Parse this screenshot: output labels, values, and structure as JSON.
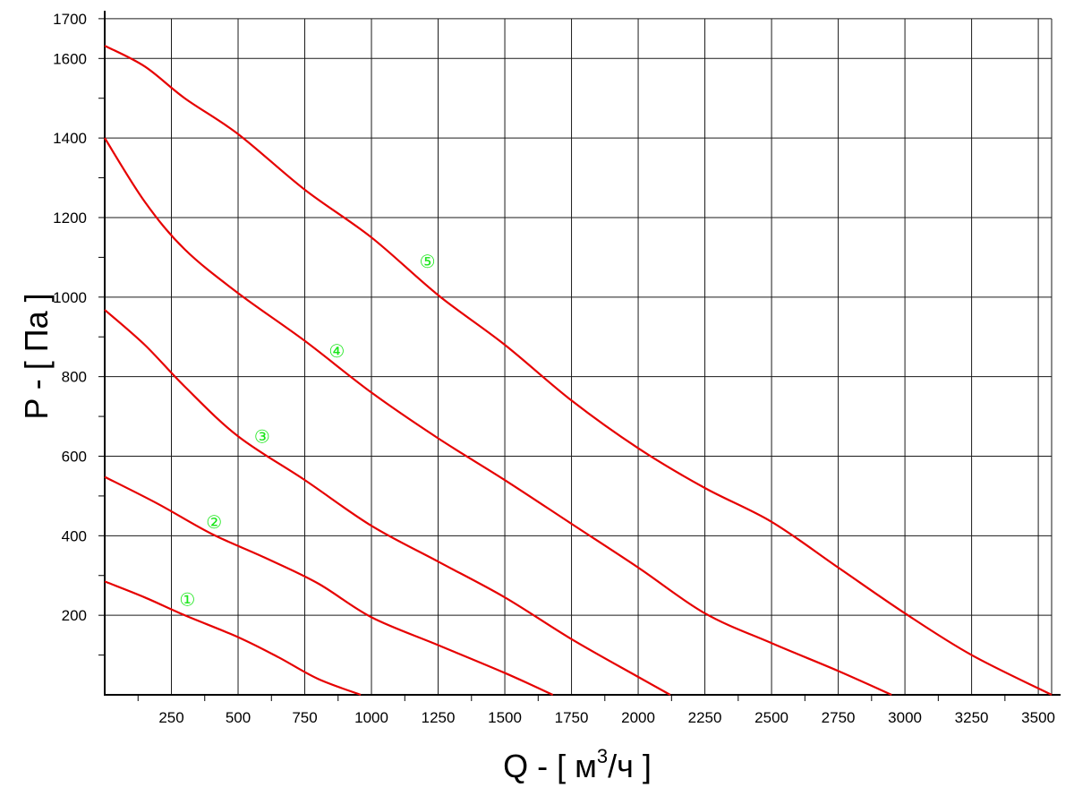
{
  "chart_data": {
    "type": "line",
    "xlabel": "Q - [ м³/ч ]",
    "xlabel_main": "Q - [ м",
    "xlabel_sup": "3",
    "xlabel_end": "/ч ]",
    "ylabel": "P - [ Па ]",
    "xlim": [
      0,
      3550
    ],
    "ylim": [
      0,
      1720
    ],
    "x_ticks": [
      250,
      500,
      750,
      1000,
      1250,
      1500,
      1750,
      2000,
      2250,
      2500,
      2750,
      3000,
      3250,
      3500
    ],
    "y_ticks": [
      200,
      400,
      600,
      800,
      1000,
      1200,
      1400,
      1600,
      1700
    ],
    "grid": true,
    "curve_color": "#e60000",
    "label_color": "#19e619",
    "series": [
      {
        "label": "①",
        "label_at": [
          310,
          240
        ],
        "points": [
          [
            0,
            285
          ],
          [
            150,
            245
          ],
          [
            300,
            200
          ],
          [
            500,
            145
          ],
          [
            650,
            95
          ],
          [
            800,
            40
          ],
          [
            960,
            0
          ]
        ]
      },
      {
        "label": "②",
        "label_at": [
          410,
          435
        ],
        "points": [
          [
            0,
            548
          ],
          [
            200,
            480
          ],
          [
            400,
            405
          ],
          [
            600,
            345
          ],
          [
            800,
            280
          ],
          [
            1000,
            195
          ],
          [
            1250,
            125
          ],
          [
            1500,
            55
          ],
          [
            1680,
            0
          ]
        ]
      },
      {
        "label": "③",
        "label_at": [
          590,
          650
        ],
        "points": [
          [
            0,
            968
          ],
          [
            150,
            880
          ],
          [
            300,
            775
          ],
          [
            500,
            650
          ],
          [
            750,
            540
          ],
          [
            1000,
            425
          ],
          [
            1250,
            335
          ],
          [
            1500,
            245
          ],
          [
            1750,
            140
          ],
          [
            2000,
            45
          ],
          [
            2120,
            0
          ]
        ]
      },
      {
        "label": "④",
        "label_at": [
          870,
          865
        ],
        "points": [
          [
            0,
            1400
          ],
          [
            150,
            1240
          ],
          [
            300,
            1120
          ],
          [
            500,
            1010
          ],
          [
            750,
            890
          ],
          [
            1000,
            760
          ],
          [
            1250,
            645
          ],
          [
            1500,
            540
          ],
          [
            1750,
            430
          ],
          [
            2000,
            320
          ],
          [
            2250,
            205
          ],
          [
            2500,
            130
          ],
          [
            2750,
            60
          ],
          [
            2950,
            0
          ]
        ]
      },
      {
        "label": "⑤",
        "label_at": [
          1210,
          1090
        ],
        "points": [
          [
            0,
            1632
          ],
          [
            150,
            1580
          ],
          [
            300,
            1500
          ],
          [
            500,
            1410
          ],
          [
            750,
            1270
          ],
          [
            1000,
            1150
          ],
          [
            1250,
            1005
          ],
          [
            1500,
            880
          ],
          [
            1750,
            740
          ],
          [
            2000,
            620
          ],
          [
            2250,
            520
          ],
          [
            2500,
            435
          ],
          [
            2750,
            320
          ],
          [
            3000,
            205
          ],
          [
            3250,
            100
          ],
          [
            3550,
            0
          ]
        ]
      }
    ]
  }
}
